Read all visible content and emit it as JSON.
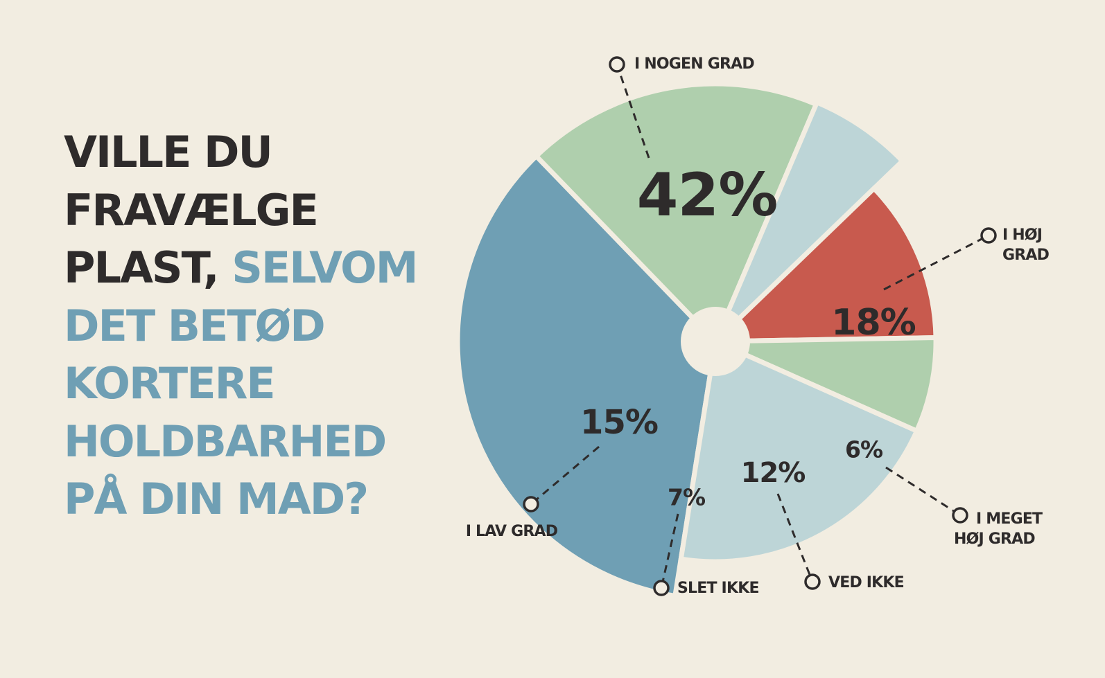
{
  "question": {
    "part1": "VILLE DU FRAVÆLGE PLAST,",
    "part2": "SELVOM DET BETØD KORTERE HOLDBARHED PÅ DIN MAD?"
  },
  "colors": {
    "background": "#f2ede1",
    "text_dark": "#2e2b2b",
    "accent_blue": "#6f9fb4"
  },
  "chart_data": {
    "type": "pie",
    "title": "VILLE DU FRAVÆLGE PLAST, SELVOM DET BETØD KORTERE HOLDBARHED PÅ DIN MAD?",
    "unit": "%",
    "slices": [
      {
        "label": "I NOGEN GRAD",
        "value": 42,
        "value_label": "42%",
        "color": "#6f9fb4"
      },
      {
        "label": "I HØJ GRAD",
        "value": 18,
        "value_label": "18%",
        "color": "#afcfad"
      },
      {
        "label": "I MEGET HØJ GRAD",
        "value": 6,
        "value_label": "6%",
        "color": "#bdd5d7"
      },
      {
        "label": "VED IKKE",
        "value": 12,
        "value_label": "12%",
        "color": "#c85a4e"
      },
      {
        "label": "SLET IKKE",
        "value": 7,
        "value_label": "7%",
        "color": "#afcfad"
      },
      {
        "label": "I LAV GRAD",
        "value": 15,
        "value_label": "15%",
        "color": "#bdd5d7"
      }
    ]
  }
}
